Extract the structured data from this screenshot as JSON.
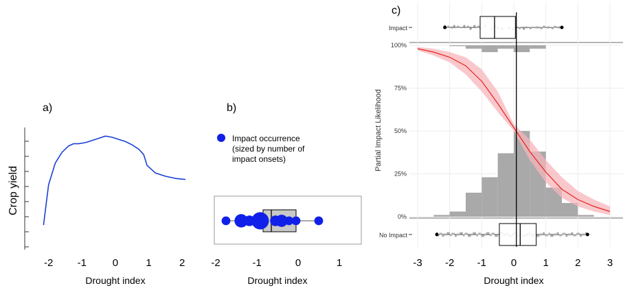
{
  "chart_data": [
    {
      "type": "line",
      "panel_label": "a)",
      "xlabel": "Drought index",
      "ylabel": "Crop yield",
      "xlim": [
        -2.3,
        2.2
      ],
      "xticks": [
        "-2",
        "-1",
        "0",
        "1",
        "2"
      ],
      "series": [
        {
          "color": "#1a3fd6",
          "x": [
            -2.15,
            -2.0,
            -1.8,
            -1.6,
            -1.4,
            -1.25,
            -1.1,
            -0.9,
            -0.7,
            -0.5,
            -0.3,
            -0.1,
            0.1,
            0.3,
            0.5,
            0.7,
            0.85,
            0.95,
            1.2,
            1.5,
            1.8,
            2.1
          ],
          "y": [
            0.05,
            0.42,
            0.62,
            0.72,
            0.78,
            0.8,
            0.8,
            0.81,
            0.83,
            0.85,
            0.87,
            0.86,
            0.84,
            0.82,
            0.79,
            0.75,
            0.7,
            0.6,
            0.53,
            0.5,
            0.48,
            0.47
          ]
        }
      ]
    },
    {
      "type": "scatter",
      "panel_label": "b)",
      "xlabel": "Drought index",
      "xlim": [
        -2.0,
        1.2
      ],
      "xticks": [
        "-2",
        "-1",
        "0",
        "1"
      ],
      "legend": [
        "Impact occurrence",
        "(sized by number of",
        "impact onsets)"
      ],
      "legend_placement": "top-left",
      "points": [
        {
          "x": -1.75,
          "size": 1
        },
        {
          "x": -1.38,
          "size": 4
        },
        {
          "x": -1.18,
          "size": 2
        },
        {
          "x": -0.92,
          "size": 8
        },
        {
          "x": -0.55,
          "size": 2
        },
        {
          "x": -0.4,
          "size": 3
        },
        {
          "x": -0.22,
          "size": 1
        },
        {
          "x": -0.05,
          "size": 1
        },
        {
          "x": 0.5,
          "size": 1
        }
      ],
      "box": {
        "min": -1.75,
        "q1": -0.85,
        "median": -0.65,
        "q3": -0.05,
        "max": 0.5
      },
      "color": "#1020e8"
    },
    {
      "type": "line",
      "panel_label": "c)",
      "xlabel": "Drought index",
      "ylabel": "Partial Impact Likelihood",
      "xlim": [
        -3,
        3
      ],
      "xticks": [
        "-3",
        "-2",
        "-1",
        "0",
        "1",
        "2",
        "3"
      ],
      "yticks": [
        "0%",
        "25%",
        "50%",
        "75%",
        "100%"
      ],
      "vline": 0.08,
      "logistic": {
        "x": [
          -3,
          -2.5,
          -2,
          -1.5,
          -1,
          -0.5,
          0,
          0.5,
          1,
          1.5,
          2,
          2.5,
          3
        ],
        "y": [
          0.98,
          0.96,
          0.93,
          0.88,
          0.79,
          0.66,
          0.52,
          0.38,
          0.26,
          0.16,
          0.1,
          0.06,
          0.03
        ],
        "lower": [
          0.97,
          0.94,
          0.9,
          0.83,
          0.73,
          0.61,
          0.5,
          0.33,
          0.2,
          0.11,
          0.06,
          0.03,
          0.01
        ],
        "upper": [
          0.99,
          0.98,
          0.96,
          0.93,
          0.86,
          0.73,
          0.54,
          0.45,
          0.33,
          0.23,
          0.15,
          0.1,
          0.06
        ],
        "color": "#e8221c",
        "band_color": "#f7b6bb"
      },
      "hist_bottom": {
        "x": [
          -2.5,
          -2,
          -1.5,
          -1,
          -0.5,
          0,
          0.5,
          1,
          1.5,
          2
        ],
        "values": [
          0.01,
          0.03,
          0.14,
          0.23,
          0.37,
          0.5,
          0.38,
          0.17,
          0.08,
          0.01
        ]
      },
      "hist_top": {
        "x": [
          -2,
          -1.5,
          -1,
          -0.5,
          0,
          0.5
        ],
        "values": [
          0.005,
          0.02,
          0.04,
          0.02,
          0.04,
          0.02
        ]
      },
      "boxplots": [
        {
          "label": "Impact",
          "min": -2.15,
          "q1": -1.05,
          "median": -0.6,
          "q3": 0.05,
          "max": 1.5
        },
        {
          "label": "No Impact",
          "min": -2.4,
          "q1": -0.45,
          "median": 0.2,
          "q3": 0.7,
          "max": 2.3
        }
      ]
    }
  ]
}
